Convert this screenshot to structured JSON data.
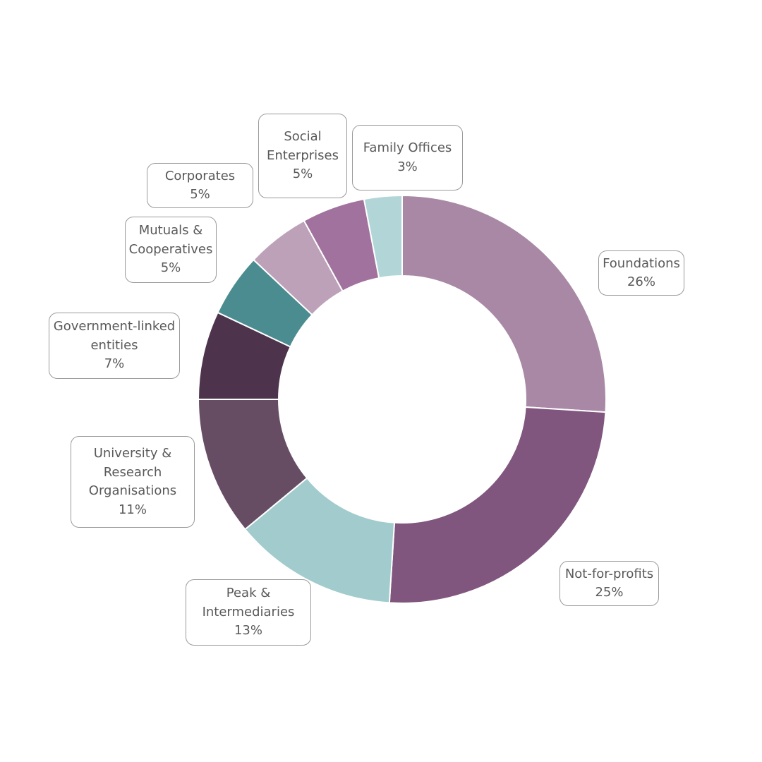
{
  "chart_data": {
    "type": "donut",
    "title": "",
    "slices": [
      {
        "label_lines": [
          "Foundations"
        ],
        "percent_label": "26%",
        "value": 26,
        "color": "#a888a5"
      },
      {
        "label_lines": [
          "Not-for-profits"
        ],
        "percent_label": "25%",
        "value": 25,
        "color": "#80557e"
      },
      {
        "label_lines": [
          "Peak &",
          "Intermediaries"
        ],
        "percent_label": "13%",
        "value": 13,
        "color": "#a1cbcd"
      },
      {
        "label_lines": [
          "University &",
          "Research",
          "Organisations"
        ],
        "percent_label": "11%",
        "value": 11,
        "color": "#674d63"
      },
      {
        "label_lines": [
          "Government-linked",
          "entities"
        ],
        "percent_label": "7%",
        "value": 7,
        "color": "#4e334c"
      },
      {
        "label_lines": [
          "Mutuals &",
          "Cooperatives"
        ],
        "percent_label": "5%",
        "value": 5,
        "color": "#4a8c90"
      },
      {
        "label_lines": [
          "Corporates"
        ],
        "percent_label": "5%",
        "value": 5,
        "color": "#bca1b9"
      },
      {
        "label_lines": [
          "Social",
          "Enterprises"
        ],
        "percent_label": "5%",
        "value": 5,
        "color": "#a1729e"
      },
      {
        "label_lines": [
          "Family Offices"
        ],
        "percent_label": "3%",
        "value": 3,
        "color": "#b2d6d8"
      }
    ],
    "legend": "callouts"
  }
}
